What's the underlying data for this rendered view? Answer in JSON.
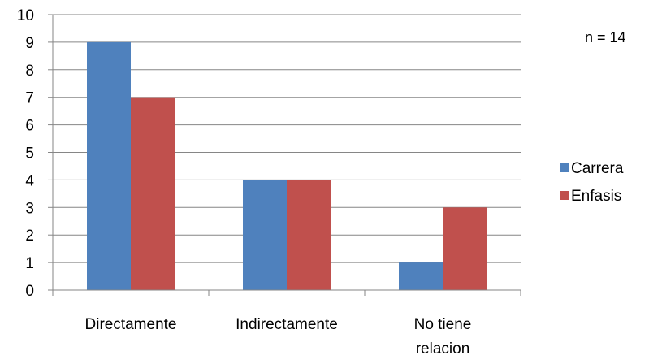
{
  "chart_data": {
    "type": "bar",
    "title": "",
    "xlabel": "",
    "ylabel": "",
    "categories": [
      "Directamente",
      "Indirectamente",
      "No tiene relacion"
    ],
    "category_lines": [
      [
        "Directamente"
      ],
      [
        "Indirectamente"
      ],
      [
        "No tiene",
        "relacion"
      ]
    ],
    "series": [
      {
        "name": "Carrera",
        "values": [
          9,
          4,
          1
        ],
        "color": "#4F81BD"
      },
      {
        "name": "Enfasis",
        "values": [
          7,
          4,
          3
        ],
        "color": "#C0504D"
      }
    ],
    "ylim": [
      0,
      10
    ],
    "yticks": [
      0,
      1,
      2,
      3,
      4,
      5,
      6,
      7,
      8,
      9,
      10
    ],
    "grid": true,
    "legend_position": "right",
    "annotation": "n = 14"
  }
}
